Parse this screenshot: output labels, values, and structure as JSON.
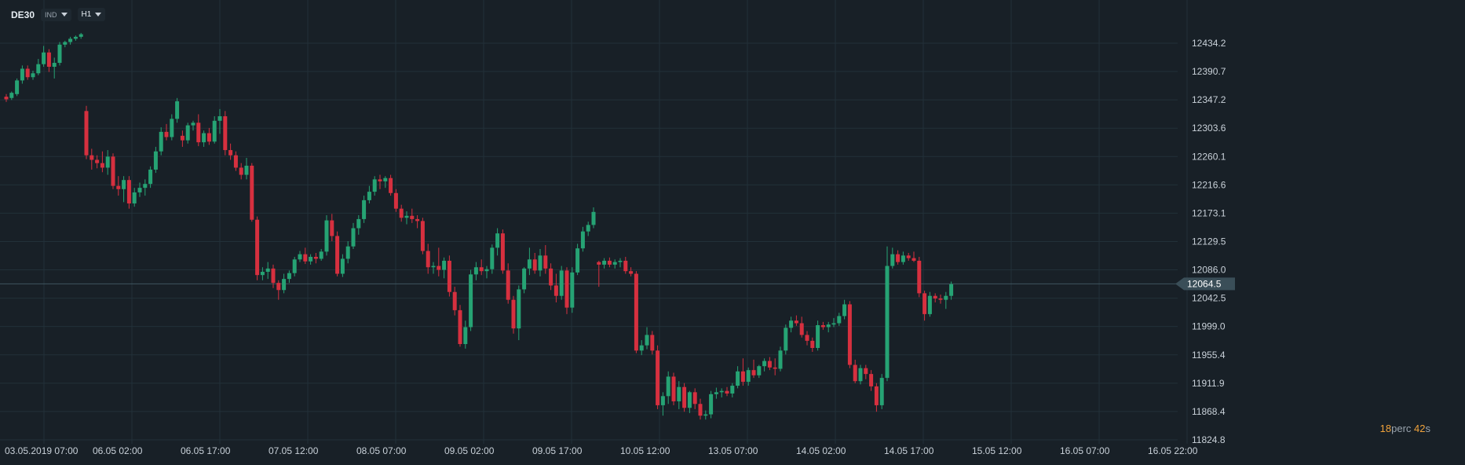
{
  "header": {
    "symbol": "DE30",
    "type_label": "IND",
    "timeframe": "H1"
  },
  "timer": {
    "minutes": "18",
    "minutes_unit": "perc",
    "seconds": "42",
    "seconds_unit": "s"
  },
  "colors": {
    "background": "#182027",
    "bull": "#26a374",
    "bear": "#d6303f",
    "grid": "#223039",
    "price_line": "#3f5560"
  },
  "chart_data": {
    "type": "candlestick",
    "symbol": "DE30",
    "timeframe": "H1",
    "current_price": 12064.5,
    "y_ticks": [
      12434.2,
      12390.7,
      12347.2,
      12303.6,
      12260.1,
      12216.6,
      12173.1,
      12129.5,
      12086.0,
      12042.5,
      11999.0,
      11955.4,
      11911.9,
      11868.4,
      11824.8
    ],
    "y_tick_labels": [
      "12434.2",
      "12390.7",
      "12347.2",
      "12303.6",
      "12260.1",
      "12216.6",
      "12173.1",
      "12129.5",
      "12086.0",
      "12042.5",
      "11999.0",
      "11955.4",
      "11911.9",
      "11868.4",
      "11824.8"
    ],
    "current_price_label": "12064.5",
    "x_tick_labels": [
      "03.05.2019  07:00",
      "06.05  02:00",
      "06.05  17:00",
      "07.05  12:00",
      "08.05  07:00",
      "09.05  02:00",
      "09.05  17:00",
      "10.05  12:00",
      "13.05  07:00",
      "14.05  02:00",
      "14.05  17:00",
      "15.05  12:00",
      "16.05  07:00",
      "16.05  22:00"
    ],
    "candles": [
      [
        12352,
        12356,
        12344,
        12348
      ],
      [
        12350,
        12360,
        12347,
        12358
      ],
      [
        12356,
        12380,
        12353,
        12377
      ],
      [
        12377,
        12400,
        12372,
        12395
      ],
      [
        12395,
        12400,
        12378,
        12382
      ],
      [
        12382,
        12392,
        12378,
        12388
      ],
      [
        12388,
        12410,
        12385,
        12402
      ],
      [
        12402,
        12430,
        12398,
        12420
      ],
      [
        12420,
        12425,
        12390,
        12398
      ],
      [
        12398,
        12412,
        12380,
        12404
      ],
      [
        12404,
        12436,
        12400,
        12432
      ],
      [
        12432,
        12438,
        12428,
        12436
      ],
      [
        12436,
        12444,
        12432,
        12441
      ],
      [
        12441,
        12446,
        12438,
        12444
      ],
      [
        12444,
        12450,
        12441,
        12448
      ],
      [
        12330,
        12338,
        12256,
        12262
      ],
      [
        12262,
        12272,
        12240,
        12255
      ],
      [
        12255,
        12262,
        12242,
        12250
      ],
      [
        12250,
        12268,
        12236,
        12243
      ],
      [
        12243,
        12270,
        12232,
        12260
      ],
      [
        12260,
        12265,
        12210,
        12215
      ],
      [
        12215,
        12230,
        12200,
        12210
      ],
      [
        12210,
        12230,
        12190,
        12224
      ],
      [
        12224,
        12230,
        12180,
        12188
      ],
      [
        12188,
        12212,
        12183,
        12205
      ],
      [
        12205,
        12220,
        12198,
        12212
      ],
      [
        12212,
        12225,
        12200,
        12218
      ],
      [
        12218,
        12245,
        12212,
        12240
      ],
      [
        12240,
        12275,
        12235,
        12268
      ],
      [
        12268,
        12305,
        12262,
        12298
      ],
      [
        12298,
        12310,
        12285,
        12290
      ],
      [
        12290,
        12325,
        12285,
        12318
      ],
      [
        12318,
        12350,
        12312,
        12345
      ],
      [
        12292,
        12300,
        12275,
        12285
      ],
      [
        12285,
        12312,
        12280,
        12308
      ],
      [
        12308,
        12315,
        12300,
        12312
      ],
      [
        12312,
        12325,
        12276,
        12282
      ],
      [
        12282,
        12300,
        12275,
        12296
      ],
      [
        12296,
        12304,
        12278,
        12283
      ],
      [
        12283,
        12322,
        12280,
        12315
      ],
      [
        12315,
        12333,
        12295,
        12322
      ],
      [
        12322,
        12330,
        12262,
        12270
      ],
      [
        12270,
        12280,
        12255,
        12262
      ],
      [
        12262,
        12268,
        12238,
        12243
      ],
      [
        12243,
        12250,
        12225,
        12232
      ],
      [
        12232,
        12258,
        12225,
        12246
      ],
      [
        12246,
        12250,
        12160,
        12163
      ],
      [
        12163,
        12168,
        12070,
        12078
      ],
      [
        12078,
        12090,
        12070,
        12083
      ],
      [
        12083,
        12098,
        12072,
        12088
      ],
      [
        12088,
        12094,
        12058,
        12066
      ],
      [
        12066,
        12070,
        12040,
        12055
      ],
      [
        12055,
        12080,
        12050,
        12072
      ],
      [
        12072,
        12085,
        12066,
        12081
      ],
      [
        12081,
        12106,
        12076,
        12102
      ],
      [
        12102,
        12115,
        12098,
        12110
      ],
      [
        12110,
        12120,
        12095,
        12099
      ],
      [
        12099,
        12110,
        12094,
        12106
      ],
      [
        12106,
        12112,
        12096,
        12103
      ],
      [
        12103,
        12118,
        12100,
        12114
      ],
      [
        12114,
        12170,
        12108,
        12162
      ],
      [
        12162,
        12172,
        12130,
        12138
      ],
      [
        12138,
        12145,
        12076,
        12080
      ],
      [
        12080,
        12110,
        12075,
        12103
      ],
      [
        12103,
        12130,
        12096,
        12122
      ],
      [
        12122,
        12158,
        12118,
        12150
      ],
      [
        12150,
        12170,
        12140,
        12164
      ],
      [
        12164,
        12200,
        12158,
        12193
      ],
      [
        12193,
        12215,
        12188,
        12206
      ],
      [
        12206,
        12230,
        12200,
        12225
      ],
      [
        12225,
        12232,
        12210,
        12222
      ],
      [
        12222,
        12230,
        12212,
        12227
      ],
      [
        12227,
        12232,
        12200,
        12204
      ],
      [
        12204,
        12210,
        12175,
        12180
      ],
      [
        12180,
        12186,
        12160,
        12166
      ],
      [
        12166,
        12176,
        12156,
        12169
      ],
      [
        12169,
        12180,
        12158,
        12164
      ],
      [
        12164,
        12170,
        12150,
        12161
      ],
      [
        12161,
        12166,
        12110,
        12115
      ],
      [
        12115,
        12126,
        12080,
        12090
      ],
      [
        12090,
        12098,
        12080,
        12092
      ],
      [
        12092,
        12120,
        12076,
        12086
      ],
      [
        12086,
        12105,
        12073,
        12100
      ],
      [
        12100,
        12108,
        12045,
        12052
      ],
      [
        12052,
        12060,
        12016,
        12024
      ],
      [
        12024,
        12032,
        11968,
        11972
      ],
      [
        11972,
        12008,
        11965,
        11998
      ],
      [
        11998,
        12086,
        11992,
        12079
      ],
      [
        12079,
        12098,
        12070,
        12090
      ],
      [
        12090,
        12102,
        12078,
        12084
      ],
      [
        12084,
        12092,
        12073,
        12087
      ],
      [
        12087,
        12125,
        12080,
        12120
      ],
      [
        12120,
        12150,
        12108,
        12142
      ],
      [
        12142,
        12148,
        12080,
        12085
      ],
      [
        12085,
        12096,
        12034,
        12040
      ],
      [
        12040,
        12046,
        11988,
        11996
      ],
      [
        11996,
        12062,
        11978,
        12056
      ],
      [
        12056,
        12090,
        12050,
        12088
      ],
      [
        12088,
        12120,
        12078,
        12102
      ],
      [
        12102,
        12112,
        12080,
        12085
      ],
      [
        12085,
        12118,
        12076,
        12108
      ],
      [
        12108,
        12124,
        12080,
        12088
      ],
      [
        12088,
        12096,
        12055,
        12062
      ],
      [
        12062,
        12080,
        12036,
        12046
      ],
      [
        12046,
        12092,
        12040,
        12085
      ],
      [
        12085,
        12090,
        12018,
        12028
      ],
      [
        12028,
        12090,
        12020,
        12082
      ],
      [
        12082,
        12126,
        12078,
        12119
      ],
      [
        12119,
        12152,
        12114,
        12145
      ],
      [
        12145,
        12160,
        12138,
        12155
      ],
      [
        12155,
        12182,
        12150,
        12175
      ],
      [
        12098,
        12100,
        12060,
        12094
      ],
      [
        12094,
        12104,
        12088,
        12100
      ],
      [
        12100,
        12105,
        12090,
        12094
      ],
      [
        12094,
        12102,
        12088,
        12098
      ],
      [
        12098,
        12104,
        12090,
        12100
      ],
      [
        12100,
        12106,
        12080,
        12084
      ],
      [
        12084,
        12090,
        12076,
        12080
      ],
      [
        12080,
        12084,
        11958,
        11962
      ],
      [
        11962,
        11978,
        11955,
        11970
      ],
      [
        11970,
        11998,
        11964,
        11986
      ],
      [
        11986,
        11992,
        11956,
        11962
      ],
      [
        11962,
        11970,
        11872,
        11878
      ],
      [
        11878,
        11898,
        11862,
        11892
      ],
      [
        11892,
        11930,
        11880,
        11922
      ],
      [
        11922,
        11928,
        11878,
        11884
      ],
      [
        11884,
        11915,
        11872,
        11906
      ],
      [
        11906,
        11912,
        11868,
        11874
      ],
      [
        11874,
        11900,
        11866,
        11898
      ],
      [
        11898,
        11904,
        11872,
        11880
      ],
      [
        11880,
        11888,
        11856,
        11862
      ],
      [
        11862,
        11870,
        11856,
        11864
      ],
      [
        11864,
        11900,
        11858,
        11895
      ],
      [
        11895,
        11905,
        11888,
        11898
      ],
      [
        11898,
        11904,
        11890,
        11900
      ],
      [
        11900,
        11906,
        11892,
        11896
      ],
      [
        11896,
        11912,
        11890,
        11908
      ],
      [
        11908,
        11938,
        11904,
        11930
      ],
      [
        11930,
        11950,
        11908,
        11914
      ],
      [
        11914,
        11936,
        11908,
        11932
      ],
      [
        11932,
        11948,
        11920,
        11924
      ],
      [
        11924,
        11940,
        11920,
        11938
      ],
      [
        11938,
        11950,
        11930,
        11946
      ],
      [
        11946,
        11952,
        11932,
        11936
      ],
      [
        11936,
        11950,
        11924,
        11934
      ],
      [
        11934,
        11968,
        11930,
        11962
      ],
      [
        11962,
        12002,
        11956,
        11997
      ],
      [
        11997,
        12014,
        11990,
        12008
      ],
      [
        12008,
        12016,
        12000,
        12004
      ],
      [
        12004,
        12014,
        11982,
        11986
      ],
      [
        11986,
        11992,
        11970,
        11977
      ],
      [
        11977,
        11982,
        11960,
        11966
      ],
      [
        11966,
        12008,
        11962,
        12001
      ],
      [
        12001,
        12006,
        11994,
        11998
      ],
      [
        11998,
        12006,
        11990,
        12002
      ],
      [
        12002,
        12012,
        11998,
        12004
      ],
      [
        12004,
        12020,
        12000,
        12015
      ],
      [
        12015,
        12040,
        12010,
        12033
      ],
      [
        12033,
        12038,
        11935,
        11940
      ],
      [
        11940,
        11948,
        11912,
        11915
      ],
      [
        11915,
        11940,
        11910,
        11935
      ],
      [
        11935,
        11940,
        11918,
        11926
      ],
      [
        11926,
        11932,
        11900,
        11907
      ],
      [
        11907,
        11912,
        11868,
        11878
      ],
      [
        11878,
        11926,
        11872,
        11920
      ],
      [
        11920,
        12122,
        11915,
        12092
      ],
      [
        12092,
        12120,
        12088,
        12110
      ],
      [
        12110,
        12116,
        12094,
        12098
      ],
      [
        12098,
        12114,
        12094,
        12108
      ],
      [
        12108,
        12112,
        12100,
        12104
      ],
      [
        12104,
        12114,
        12098,
        12100
      ],
      [
        12100,
        12106,
        12044,
        12050
      ],
      [
        12050,
        12054,
        12008,
        12018
      ],
      [
        12018,
        12052,
        12014,
        12046
      ],
      [
        12046,
        12050,
        12036,
        12042
      ],
      [
        12042,
        12048,
        12034,
        12040
      ],
      [
        12040,
        12052,
        12026,
        12046
      ],
      [
        12046,
        12068,
        12040,
        12064
      ]
    ]
  }
}
